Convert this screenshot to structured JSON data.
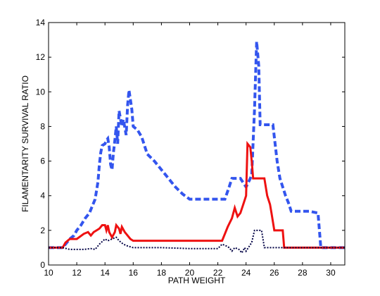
{
  "chart_data": {
    "type": "line",
    "title": "",
    "xlabel": "PATH WEIGHT",
    "ylabel": "FILAMENTARITY SURVIVAL RATIO",
    "xlim": [
      10,
      31
    ],
    "ylim": [
      0,
      14
    ],
    "xticks": [
      10,
      12,
      14,
      16,
      18,
      20,
      22,
      24,
      26,
      28,
      30
    ],
    "yticks": [
      0,
      2,
      4,
      6,
      8,
      10,
      12,
      14
    ],
    "grid": false,
    "legend": "none",
    "box": true,
    "series": [
      {
        "color": "#3355ee",
        "style": "dashed",
        "points": [
          [
            10,
            1
          ],
          [
            11,
            1
          ],
          [
            11.2,
            1.2
          ],
          [
            11.5,
            1.5
          ],
          [
            11.8,
            1.7
          ],
          [
            12.0,
            2.0
          ],
          [
            12.3,
            2.3
          ],
          [
            12.6,
            2.7
          ],
          [
            12.9,
            3.0
          ],
          [
            13.1,
            3.4
          ],
          [
            13.3,
            3.8
          ],
          [
            13.5,
            4.8
          ],
          [
            13.6,
            5.8
          ],
          [
            13.7,
            6.5
          ],
          [
            13.8,
            6.9
          ],
          [
            14.0,
            7.0
          ],
          [
            14.1,
            7.2
          ],
          [
            14.2,
            7.3
          ],
          [
            14.3,
            6.8
          ],
          [
            14.4,
            5.8
          ],
          [
            14.5,
            5.5
          ],
          [
            14.6,
            6.5
          ],
          [
            14.7,
            7.2
          ],
          [
            14.8,
            8.0
          ],
          [
            14.9,
            7.0
          ],
          [
            15.0,
            8.9
          ],
          [
            15.2,
            8.0
          ],
          [
            15.3,
            8.4
          ],
          [
            15.5,
            7.5
          ],
          [
            15.6,
            9.2
          ],
          [
            15.7,
            10.1
          ],
          [
            15.9,
            9.0
          ],
          [
            16.0,
            8.0
          ],
          [
            16.3,
            7.8
          ],
          [
            16.6,
            7.4
          ],
          [
            17.0,
            6.4
          ],
          [
            17.5,
            6.0
          ],
          [
            17.9,
            5.6
          ],
          [
            18.3,
            5.2
          ],
          [
            18.7,
            4.8
          ],
          [
            19.0,
            4.5
          ],
          [
            19.5,
            4.1
          ],
          [
            20.0,
            3.8
          ],
          [
            22.5,
            3.8
          ],
          [
            22.8,
            4.5
          ],
          [
            23.0,
            5.0
          ],
          [
            23.6,
            5.0
          ],
          [
            24.0,
            4.5
          ],
          [
            24.3,
            5.0
          ],
          [
            24.4,
            5.2
          ],
          [
            24.6,
            9.0
          ],
          [
            24.75,
            12.9
          ],
          [
            24.9,
            11.5
          ],
          [
            25.0,
            8.1
          ],
          [
            25.9,
            8.1
          ],
          [
            26.2,
            6.0
          ],
          [
            26.4,
            5.0
          ],
          [
            26.8,
            4.0
          ],
          [
            27.0,
            3.6
          ],
          [
            27.2,
            3.1
          ],
          [
            28.5,
            3.1
          ],
          [
            29.1,
            3.0
          ],
          [
            29.3,
            1.0
          ],
          [
            31,
            1
          ]
        ]
      },
      {
        "color": "#ee1111",
        "style": "solid",
        "points": [
          [
            10,
            1
          ],
          [
            11,
            1
          ],
          [
            11.2,
            1.3
          ],
          [
            11.5,
            1.5
          ],
          [
            12.0,
            1.5
          ],
          [
            12.5,
            1.8
          ],
          [
            12.8,
            1.9
          ],
          [
            13.0,
            1.7
          ],
          [
            13.2,
            1.9
          ],
          [
            13.4,
            2.0
          ],
          [
            13.6,
            2.1
          ],
          [
            13.8,
            2.3
          ],
          [
            14.0,
            2.3
          ],
          [
            14.1,
            2.0
          ],
          [
            14.2,
            2.3
          ],
          [
            14.3,
            1.9
          ],
          [
            14.5,
            1.6
          ],
          [
            14.7,
            1.9
          ],
          [
            14.8,
            2.3
          ],
          [
            15.0,
            2.1
          ],
          [
            15.1,
            1.8
          ],
          [
            15.2,
            2.2
          ],
          [
            15.4,
            1.9
          ],
          [
            15.6,
            1.7
          ],
          [
            15.8,
            1.5
          ],
          [
            16.0,
            1.4
          ],
          [
            22.3,
            1.4
          ],
          [
            22.5,
            1.8
          ],
          [
            22.7,
            2.2
          ],
          [
            23.0,
            2.7
          ],
          [
            23.2,
            3.3
          ],
          [
            23.4,
            2.8
          ],
          [
            23.6,
            3.0
          ],
          [
            23.8,
            3.5
          ],
          [
            24.0,
            4.0
          ],
          [
            24.1,
            7.0
          ],
          [
            24.3,
            6.8
          ],
          [
            24.4,
            6.0
          ],
          [
            24.5,
            5.0
          ],
          [
            25.3,
            5.0
          ],
          [
            25.5,
            4.0
          ],
          [
            25.7,
            3.5
          ],
          [
            25.8,
            3.0
          ],
          [
            26.0,
            2.0
          ],
          [
            26.6,
            2.0
          ],
          [
            26.7,
            1.0
          ],
          [
            31,
            1
          ]
        ]
      },
      {
        "color": "#000044",
        "style": "dotted",
        "points": [
          [
            10,
            1
          ],
          [
            11,
            1
          ],
          [
            11.5,
            0.9
          ],
          [
            12.0,
            0.9
          ],
          [
            12.5,
            0.9
          ],
          [
            13.0,
            0.95
          ],
          [
            13.3,
            0.9
          ],
          [
            13.6,
            1.2
          ],
          [
            14.0,
            1.5
          ],
          [
            14.2,
            1.4
          ],
          [
            14.5,
            1.5
          ],
          [
            14.8,
            1.6
          ],
          [
            15.0,
            1.4
          ],
          [
            15.3,
            1.2
          ],
          [
            15.6,
            1.1
          ],
          [
            16.0,
            1.0
          ],
          [
            18.0,
            1.0
          ],
          [
            20.0,
            0.95
          ],
          [
            22.0,
            0.95
          ],
          [
            22.3,
            1.2
          ],
          [
            22.6,
            1.1
          ],
          [
            22.8,
            1.0
          ],
          [
            23.0,
            0.8
          ],
          [
            23.2,
            1.0
          ],
          [
            23.5,
            0.9
          ],
          [
            23.7,
            0.7
          ],
          [
            23.9,
            1.0
          ],
          [
            24.0,
            0.8
          ],
          [
            24.4,
            1.3
          ],
          [
            24.6,
            2.0
          ],
          [
            25.1,
            2.0
          ],
          [
            25.3,
            1.0
          ],
          [
            31,
            1
          ]
        ]
      }
    ]
  }
}
